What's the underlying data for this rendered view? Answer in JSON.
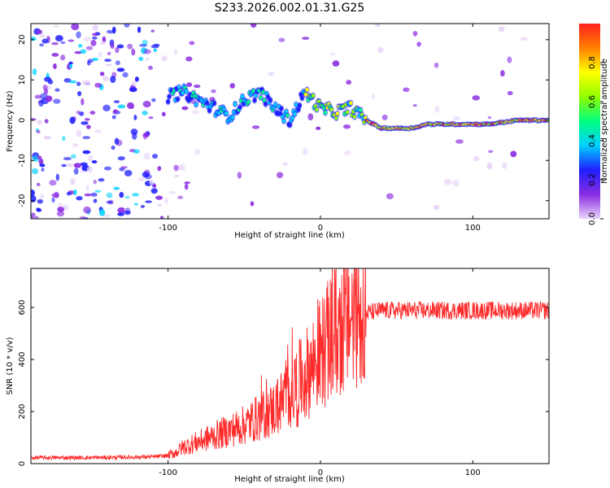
{
  "title": "S233.2026.002.01.31.G25",
  "chart_data": [
    {
      "type": "heatmap",
      "name": "spectrogram",
      "xlabel": "Height of straight line (km)",
      "ylabel": "Frequency (Hz)",
      "xlim": [
        -190,
        150
      ],
      "ylim": [
        -24.5,
        24
      ],
      "xticks": [
        -100,
        0,
        100
      ],
      "yticks": [
        20,
        10,
        0,
        -10,
        -20
      ],
      "colorbar": {
        "label": "Normalized spectral amplitude",
        "range": [
          0,
          1
        ],
        "ticks": [
          "0.0",
          "0.2",
          "0.4",
          "0.6",
          "0.8"
        ],
        "colors": [
          "#e8d4f8",
          "#8a2be2",
          "#1f1fff",
          "#00d0ff",
          "#00ff80",
          "#90ff00",
          "#ffff00",
          "#ff8000",
          "#ff2020"
        ]
      },
      "ridge": {
        "description_points_x": [
          -100,
          -90,
          -80,
          -70,
          -60,
          -50,
          -40,
          -30,
          -20,
          -10,
          0,
          10,
          20,
          30,
          40,
          50,
          60,
          70,
          80,
          90,
          100,
          110,
          120,
          130,
          150
        ],
        "frequency_hz": [
          6,
          7,
          5,
          3,
          1,
          5,
          7,
          3,
          0,
          7,
          3,
          2,
          3,
          0,
          -2,
          -2,
          -2,
          -1,
          -1,
          -1,
          -1,
          -1,
          -0.5,
          0,
          0
        ]
      }
    },
    {
      "type": "line",
      "name": "snr",
      "xlabel": "Height of straight line (km)",
      "ylabel": "SNR (10 * v/v)",
      "xlim": [
        -190,
        150
      ],
      "ylim": [
        0,
        750
      ],
      "xticks": [
        -100,
        0,
        100
      ],
      "yticks": [
        0,
        200,
        400,
        600
      ],
      "color": "#ff2a2a",
      "x": [
        -190,
        -150,
        -110,
        -100,
        -95,
        -90,
        -80,
        -70,
        -60,
        -50,
        -40,
        -30,
        -20,
        -10,
        0,
        10,
        20,
        30,
        40,
        50,
        60,
        80,
        100,
        120,
        150
      ],
      "values": [
        22,
        22,
        25,
        30,
        40,
        60,
        80,
        100,
        120,
        140,
        170,
        200,
        260,
        320,
        400,
        480,
        540,
        575,
        585,
        585,
        585,
        585,
        585,
        585,
        585
      ]
    }
  ]
}
